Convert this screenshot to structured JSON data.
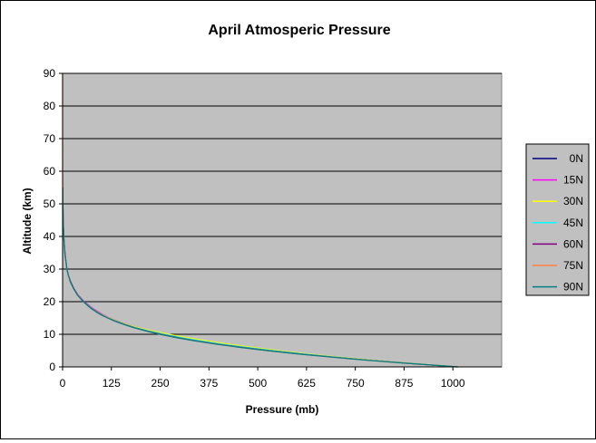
{
  "chart_data": {
    "type": "line",
    "title": "April Atmosperic Pressure",
    "xlabel": "Pressure (mb)",
    "ylabel": "Altitude (km)",
    "xlim": [
      0,
      1125
    ],
    "ylim": [
      0,
      90
    ],
    "x_ticks": [
      "0",
      "125",
      "250",
      "375",
      "500",
      "625",
      "750",
      "875",
      "1000"
    ],
    "y_ticks": [
      "0",
      "10",
      "20",
      "30",
      "40",
      "50",
      "60",
      "70",
      "80",
      "90"
    ],
    "grid": "horizontal",
    "legend_position": "right",
    "plot_background": "#c0c0c0",
    "series": [
      {
        "name": "0N",
        "color": "#000080",
        "points": [
          [
            1010,
            0
          ],
          [
            900,
            1
          ],
          [
            800,
            2
          ],
          [
            700,
            3
          ],
          [
            615,
            4
          ],
          [
            540,
            5
          ],
          [
            470,
            6
          ],
          [
            410,
            7
          ],
          [
            355,
            8
          ],
          [
            305,
            9
          ],
          [
            260,
            10
          ],
          [
            220,
            11
          ],
          [
            190,
            12
          ],
          [
            163,
            13
          ],
          [
            140,
            14
          ],
          [
            120,
            15
          ],
          [
            103,
            16
          ],
          [
            89,
            17
          ],
          [
            76,
            18
          ],
          [
            55,
            20
          ],
          [
            40,
            22
          ],
          [
            29,
            24
          ],
          [
            21,
            26
          ],
          [
            15,
            28
          ],
          [
            11,
            30
          ],
          [
            6,
            35
          ],
          [
            3,
            40
          ],
          [
            1.5,
            45
          ],
          [
            0.8,
            50
          ],
          [
            0.4,
            55
          ]
        ]
      },
      {
        "name": "15N",
        "color": "#ff00ff",
        "points": [
          [
            1012,
            0
          ],
          [
            900,
            1
          ],
          [
            800,
            2
          ],
          [
            705,
            3
          ],
          [
            620,
            4
          ],
          [
            545,
            5
          ],
          [
            477,
            6
          ],
          [
            418,
            7
          ],
          [
            362,
            8
          ],
          [
            312,
            9
          ],
          [
            268,
            10
          ],
          [
            229,
            11
          ],
          [
            196,
            12
          ],
          [
            167,
            13
          ],
          [
            142,
            14
          ],
          [
            121,
            15
          ],
          [
            104,
            16
          ],
          [
            89,
            17
          ],
          [
            76,
            18
          ],
          [
            55,
            20
          ],
          [
            40,
            22
          ],
          [
            29,
            24
          ],
          [
            21,
            26
          ],
          [
            15,
            28
          ],
          [
            11,
            30
          ],
          [
            6,
            35
          ],
          [
            3,
            40
          ],
          [
            1.5,
            45
          ],
          [
            0.8,
            50
          ],
          [
            0.4,
            55
          ]
        ]
      },
      {
        "name": "30N",
        "color": "#ffff00",
        "points": [
          [
            1015,
            0
          ],
          [
            903,
            1
          ],
          [
            803,
            2
          ],
          [
            710,
            3
          ],
          [
            628,
            4
          ],
          [
            553,
            5
          ],
          [
            485,
            6
          ],
          [
            425,
            7
          ],
          [
            369,
            8
          ],
          [
            318,
            9
          ],
          [
            272,
            10
          ],
          [
            231,
            11
          ],
          [
            196,
            12
          ],
          [
            166,
            13
          ],
          [
            141,
            14
          ],
          [
            120,
            15
          ],
          [
            102,
            16
          ],
          [
            87,
            17
          ],
          [
            74,
            18
          ],
          [
            54,
            20
          ],
          [
            39,
            22
          ],
          [
            29,
            24
          ],
          [
            21,
            26
          ],
          [
            15,
            28
          ],
          [
            11,
            30
          ],
          [
            6,
            35
          ],
          [
            3,
            40
          ],
          [
            1.5,
            45
          ],
          [
            0.8,
            50
          ],
          [
            0.4,
            55
          ]
        ]
      },
      {
        "name": "45N",
        "color": "#00ffff",
        "points": [
          [
            1015,
            0
          ],
          [
            900,
            1
          ],
          [
            797,
            2
          ],
          [
            703,
            3
          ],
          [
            618,
            4
          ],
          [
            540,
            5
          ],
          [
            471,
            6
          ],
          [
            409,
            7
          ],
          [
            354,
            8
          ],
          [
            304,
            9
          ],
          [
            261,
            10
          ],
          [
            223,
            11
          ],
          [
            190,
            12
          ],
          [
            162,
            13
          ],
          [
            139,
            14
          ],
          [
            118,
            15
          ],
          [
            101,
            16
          ],
          [
            86,
            17
          ],
          [
            74,
            18
          ],
          [
            54,
            20
          ],
          [
            39,
            22
          ],
          [
            29,
            24
          ],
          [
            21,
            26
          ],
          [
            15,
            28
          ],
          [
            11,
            30
          ],
          [
            6,
            35
          ],
          [
            3,
            40
          ],
          [
            1.5,
            45
          ],
          [
            0.8,
            50
          ],
          [
            0.4,
            55
          ]
        ]
      },
      {
        "name": "60N",
        "color": "#800080",
        "points": [
          [
            1012,
            0
          ],
          [
            895,
            1
          ],
          [
            790,
            2
          ],
          [
            695,
            3
          ],
          [
            608,
            4
          ],
          [
            530,
            5
          ],
          [
            460,
            6
          ],
          [
            398,
            7
          ],
          [
            343,
            8
          ],
          [
            295,
            9
          ],
          [
            254,
            10
          ],
          [
            218,
            11
          ],
          [
            186,
            12
          ],
          [
            160,
            13
          ],
          [
            137,
            14
          ],
          [
            117,
            15
          ],
          [
            100,
            16
          ],
          [
            86,
            17
          ],
          [
            73,
            18
          ],
          [
            54,
            20
          ],
          [
            39,
            22
          ],
          [
            29,
            24
          ],
          [
            21,
            26
          ],
          [
            15,
            28
          ],
          [
            11,
            30
          ],
          [
            6,
            35
          ],
          [
            3,
            40
          ],
          [
            1.5,
            45
          ],
          [
            0.8,
            50
          ],
          [
            0.4,
            55
          ]
        ]
      },
      {
        "name": "75N",
        "color": "#ff8040",
        "points": [
          [
            1013,
            0
          ],
          [
            893,
            1
          ],
          [
            786,
            2
          ],
          [
            690,
            3
          ],
          [
            603,
            4
          ],
          [
            525,
            5
          ],
          [
            455,
            6
          ],
          [
            393,
            7
          ],
          [
            339,
            8
          ],
          [
            291,
            9
          ],
          [
            250,
            10
          ],
          [
            215,
            11
          ],
          [
            184,
            12
          ],
          [
            158,
            13
          ],
          [
            135,
            14
          ],
          [
            116,
            15
          ],
          [
            99,
            16
          ],
          [
            85,
            17
          ],
          [
            72,
            18
          ],
          [
            53,
            20
          ],
          [
            39,
            22
          ],
          [
            28,
            24
          ],
          [
            20,
            26
          ],
          [
            15,
            28
          ],
          [
            11,
            30
          ],
          [
            5.5,
            35
          ],
          [
            2.8,
            40
          ],
          [
            1.4,
            45
          ],
          [
            0.7,
            50
          ],
          [
            0.35,
            55
          ],
          [
            0.15,
            60
          ],
          [
            0.07,
            65
          ],
          [
            0.03,
            70
          ],
          [
            0.015,
            75
          ],
          [
            0.007,
            80
          ],
          [
            0.003,
            85
          ],
          [
            0.001,
            90
          ]
        ]
      },
      {
        "name": "90N",
        "color": "#008080",
        "points": [
          [
            1013,
            0
          ],
          [
            892,
            1
          ],
          [
            784,
            2
          ],
          [
            688,
            3
          ],
          [
            601,
            4
          ],
          [
            523,
            5
          ],
          [
            453,
            6
          ],
          [
            391,
            7
          ],
          [
            337,
            8
          ],
          [
            290,
            9
          ],
          [
            249,
            10
          ],
          [
            214,
            11
          ],
          [
            183,
            12
          ],
          [
            157,
            13
          ],
          [
            134,
            14
          ],
          [
            115,
            15
          ],
          [
            98,
            16
          ],
          [
            84,
            17
          ],
          [
            72,
            18
          ],
          [
            53,
            20
          ],
          [
            38,
            22
          ],
          [
            28,
            24
          ],
          [
            20,
            26
          ],
          [
            15,
            28
          ],
          [
            11,
            30
          ],
          [
            5.5,
            35
          ],
          [
            2.8,
            40
          ],
          [
            1.4,
            45
          ],
          [
            0.7,
            50
          ],
          [
            0.35,
            55
          ]
        ]
      }
    ]
  }
}
